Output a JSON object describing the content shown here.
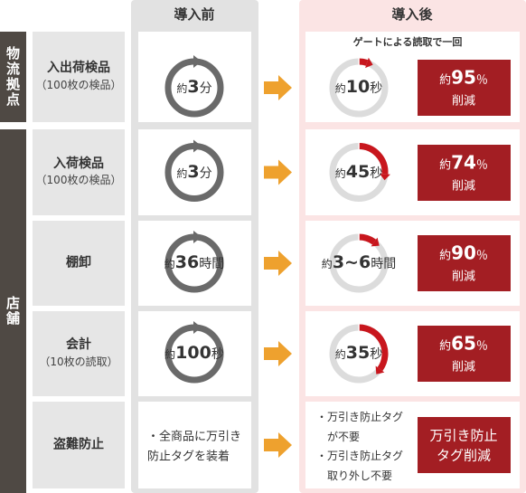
{
  "headers": {
    "before": "導入前",
    "after": "導入後"
  },
  "groups": [
    {
      "label": "物流拠点"
    },
    {
      "label": "店舗"
    }
  ],
  "rows": [
    {
      "label": "入出荷検品",
      "sublabel": "（100枚の検品）",
      "note": "ゲートによる読取で一回",
      "before": {
        "prefix": "約",
        "number": "3",
        "unit": "分"
      },
      "after": {
        "prefix": "約",
        "number": "10",
        "unit": "秒"
      },
      "reduction": {
        "prefix": "約",
        "value": 95,
        "unit": "％",
        "suffix": "削減"
      }
    },
    {
      "label": "入荷検品",
      "sublabel": "（100枚の検品）",
      "before": {
        "prefix": "約",
        "number": "3",
        "unit": "分"
      },
      "after": {
        "prefix": "約",
        "number": "45",
        "unit": "秒"
      },
      "reduction": {
        "prefix": "約",
        "value": 74,
        "unit": "％",
        "suffix": "削減"
      }
    },
    {
      "label": "棚卸",
      "before": {
        "prefix": "約",
        "number": "36",
        "unit": "時間"
      },
      "after": {
        "prefix": "約",
        "number": "3~6",
        "unit": "時間"
      },
      "reduction": {
        "prefix": "約",
        "value": 90,
        "unit": "％",
        "suffix": "削減"
      }
    },
    {
      "label": "会計",
      "sublabel": "（10枚の読取）",
      "before": {
        "prefix": "約",
        "number": "100",
        "unit": "秒"
      },
      "after": {
        "prefix": "約",
        "number": "35",
        "unit": "秒"
      },
      "reduction": {
        "prefix": "約",
        "value": 65,
        "unit": "％",
        "suffix": "削減"
      }
    },
    {
      "label": "盗難防止",
      "before_text": [
        "・全商品に万引き",
        "防止タグを装着"
      ],
      "after_items": [
        [
          "・万引き防止タグ",
          "が不要"
        ],
        [
          "・万引き防止タグ",
          "取り外し不要"
        ]
      ],
      "result": [
        "万引き防止",
        "タグ削減"
      ]
    }
  ]
}
